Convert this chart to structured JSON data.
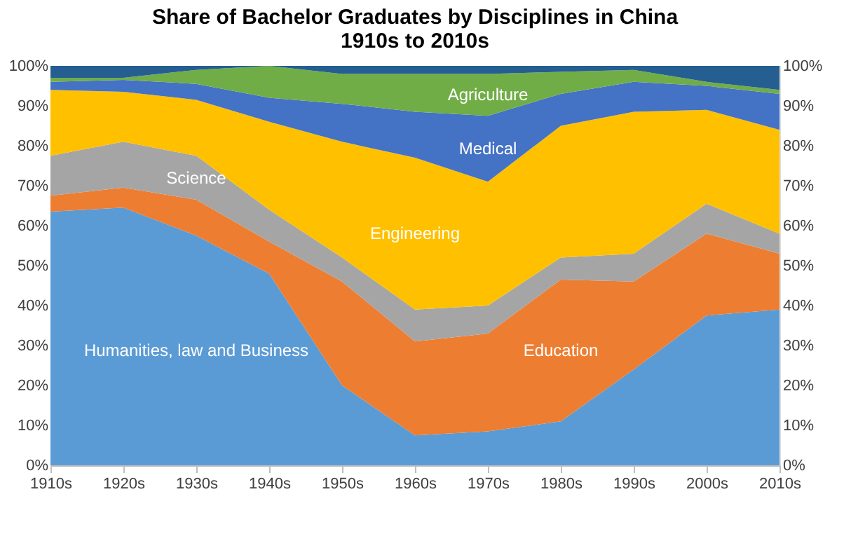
{
  "chart_data": {
    "type": "area",
    "title": "Share of Bachelor Graduates by Disciplines in China\n1910s to 2010s",
    "stacked": true,
    "categories": [
      "1910s",
      "1920s",
      "1930s",
      "1940s",
      "1950s",
      "1960s",
      "1970s",
      "1980s",
      "1990s",
      "2000s",
      "2010s"
    ],
    "series": [
      {
        "name": "Humanities, law and Business",
        "color": "#5b9bd5",
        "values": [
          63.5,
          64.5,
          57.5,
          48,
          20,
          7.5,
          8.5,
          11,
          24,
          37.5,
          39
        ]
      },
      {
        "name": "Education",
        "color": "#ed7d31",
        "values": [
          4,
          5,
          9,
          8,
          26,
          23.5,
          24.5,
          35.5,
          22,
          20.5,
          14
        ]
      },
      {
        "name": "Science",
        "color": "#a5a5a5",
        "values": [
          10,
          11.5,
          11,
          8,
          6,
          8,
          7,
          5.5,
          7,
          7.5,
          5
        ]
      },
      {
        "name": "Engineering",
        "color": "#ffc000",
        "values": [
          16.5,
          12.5,
          14,
          22,
          29,
          38,
          31,
          33,
          35.5,
          23.5,
          26
        ]
      },
      {
        "name": "Medical",
        "color": "#4472c4",
        "values": [
          2,
          3,
          4,
          6,
          9.5,
          11.5,
          16.5,
          8,
          7.5,
          6,
          9
        ]
      },
      {
        "name": "Agriculture",
        "color": "#70ad47",
        "values": [
          1,
          0.5,
          3.5,
          8,
          7.5,
          9.5,
          10.5,
          5.5,
          3,
          1,
          1
        ]
      },
      {
        "color": "#255e91",
        "values": [
          3,
          3,
          1,
          0,
          2,
          2,
          2,
          1.5,
          1,
          4,
          6
        ]
      }
    ],
    "ylim": [
      0,
      100
    ],
    "yticks": [
      {
        "value": 0,
        "label": "0%"
      },
      {
        "value": 10,
        "label": "10%"
      },
      {
        "value": 20,
        "label": "20%"
      },
      {
        "value": 30,
        "label": "30%"
      },
      {
        "value": 40,
        "label": "40%"
      },
      {
        "value": 50,
        "label": "50%"
      },
      {
        "value": 60,
        "label": "60%"
      },
      {
        "value": 70,
        "label": "70%"
      },
      {
        "value": 80,
        "label": "80%"
      },
      {
        "value": 90,
        "label": "90%"
      },
      {
        "value": 100,
        "label": "100%"
      }
    ],
    "y2lim": [
      0,
      100
    ],
    "y2ticks": [
      {
        "value": 0,
        "label": "0%"
      },
      {
        "value": 10,
        "label": "10%"
      },
      {
        "value": 20,
        "label": "20%"
      },
      {
        "value": 30,
        "label": "30%"
      },
      {
        "value": 40,
        "label": "40%"
      },
      {
        "value": 50,
        "label": "50%"
      },
      {
        "value": 60,
        "label": "60%"
      },
      {
        "value": 70,
        "label": "70%"
      },
      {
        "value": 80,
        "label": "80%"
      },
      {
        "value": 90,
        "label": "90%"
      },
      {
        "value": 100,
        "label": "100%"
      }
    ],
    "grid": false,
    "legend": false
  }
}
